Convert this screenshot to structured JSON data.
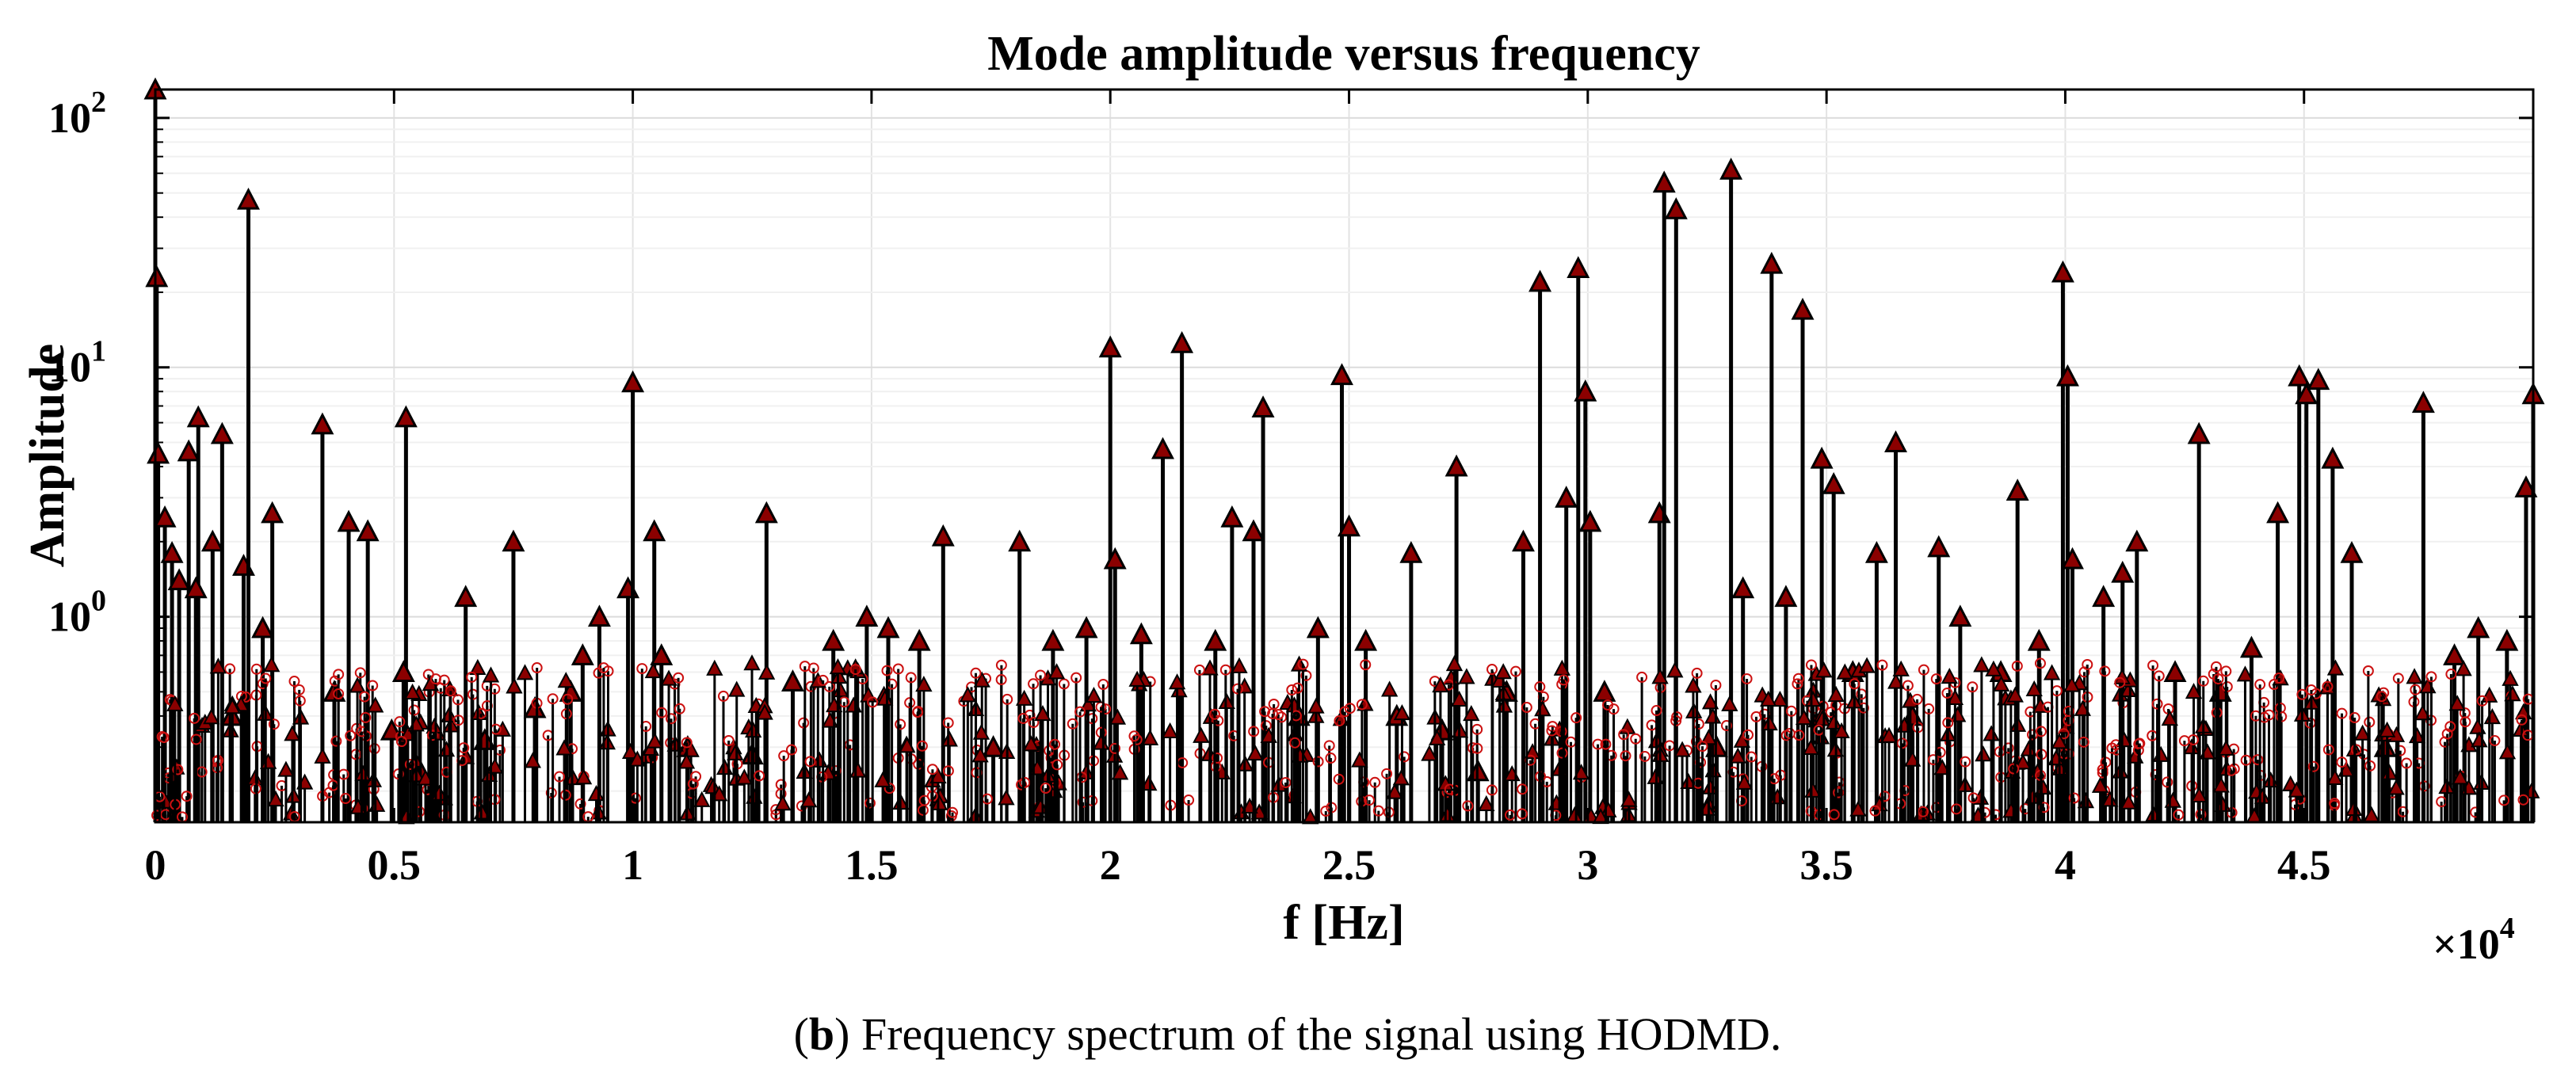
{
  "chart_data": {
    "type": "stem",
    "title": "Mode amplitude versus frequency",
    "xlabel": "f [Hz]",
    "ylabel": "Amplitude",
    "x_multiplier_label": "×10",
    "x_multiplier_exponent": "4",
    "xlim": [
      0,
      49800
    ],
    "ylim": [
      0.15,
      130
    ],
    "yscale": "log",
    "grid": true,
    "xticks": [
      {
        "value": 0,
        "label": "0"
      },
      {
        "value": 5000,
        "label": "0.5"
      },
      {
        "value": 10000,
        "label": "1"
      },
      {
        "value": 15000,
        "label": "1.5"
      },
      {
        "value": 20000,
        "label": "2"
      },
      {
        "value": 25000,
        "label": "2.5"
      },
      {
        "value": 30000,
        "label": "3"
      },
      {
        "value": 35000,
        "label": "3.5"
      },
      {
        "value": 40000,
        "label": "4"
      },
      {
        "value": 45000,
        "label": "4.5"
      }
    ],
    "yticks": [
      {
        "value": 1,
        "base": "10",
        "exp": "0"
      },
      {
        "value": 10,
        "base": "10",
        "exp": "1"
      },
      {
        "value": 100,
        "base": "10",
        "exp": "2"
      }
    ],
    "stem_color": "#000000",
    "marker_color": "#8b0000",
    "circle_color": "#cc1111",
    "peaks": [
      {
        "f": 0,
        "a": 130
      },
      {
        "f": 30,
        "a": 23
      },
      {
        "f": 60,
        "a": 4.5
      },
      {
        "f": 200,
        "a": 2.5
      },
      {
        "f": 350,
        "a": 1.8
      },
      {
        "f": 500,
        "a": 1.4
      },
      {
        "f": 700,
        "a": 4.6
      },
      {
        "f": 900,
        "a": 6.3
      },
      {
        "f": 850,
        "a": 1.3
      },
      {
        "f": 1200,
        "a": 2.0
      },
      {
        "f": 1400,
        "a": 5.4
      },
      {
        "f": 1600,
        "a": 0.4
      },
      {
        "f": 1850,
        "a": 1.6
      },
      {
        "f": 1950,
        "a": 47
      },
      {
        "f": 2250,
        "a": 0.9
      },
      {
        "f": 2450,
        "a": 2.6
      },
      {
        "f": 3500,
        "a": 5.9
      },
      {
        "f": 3750,
        "a": 0.5
      },
      {
        "f": 4050,
        "a": 2.4
      },
      {
        "f": 4450,
        "a": 2.2
      },
      {
        "f": 4950,
        "a": 0.35
      },
      {
        "f": 5250,
        "a": 6.3
      },
      {
        "f": 5200,
        "a": 0.6
      },
      {
        "f": 5550,
        "a": 0.24
      },
      {
        "f": 6500,
        "a": 1.2
      },
      {
        "f": 6900,
        "a": 0.32
      },
      {
        "f": 7500,
        "a": 2.0
      },
      {
        "f": 7950,
        "a": 0.43
      },
      {
        "f": 8700,
        "a": 0.5
      },
      {
        "f": 8950,
        "a": 0.7
      },
      {
        "f": 9300,
        "a": 1.0
      },
      {
        "f": 9900,
        "a": 1.3
      },
      {
        "f": 10000,
        "a": 8.7
      },
      {
        "f": 10450,
        "a": 2.2
      },
      {
        "f": 10600,
        "a": 0.7
      },
      {
        "f": 11150,
        "a": 0.3
      },
      {
        "f": 12500,
        "a": 0.28
      },
      {
        "f": 12800,
        "a": 2.6
      },
      {
        "f": 13350,
        "a": 0.55
      },
      {
        "f": 14200,
        "a": 0.8
      },
      {
        "f": 14900,
        "a": 1.0
      },
      {
        "f": 15350,
        "a": 0.9
      },
      {
        "f": 16000,
        "a": 0.8
      },
      {
        "f": 16500,
        "a": 2.1
      },
      {
        "f": 17550,
        "a": 0.3
      },
      {
        "f": 18100,
        "a": 2.0
      },
      {
        "f": 18800,
        "a": 0.8
      },
      {
        "f": 19500,
        "a": 0.9
      },
      {
        "f": 20000,
        "a": 12
      },
      {
        "f": 20100,
        "a": 1.7
      },
      {
        "f": 20650,
        "a": 0.85
      },
      {
        "f": 21100,
        "a": 4.7
      },
      {
        "f": 21500,
        "a": 12.5
      },
      {
        "f": 22200,
        "a": 0.8
      },
      {
        "f": 22550,
        "a": 2.5
      },
      {
        "f": 23000,
        "a": 2.2
      },
      {
        "f": 23200,
        "a": 6.9
      },
      {
        "f": 23950,
        "a": 0.4
      },
      {
        "f": 24350,
        "a": 0.9
      },
      {
        "f": 24850,
        "a": 9.3
      },
      {
        "f": 25000,
        "a": 2.3
      },
      {
        "f": 25350,
        "a": 0.8
      },
      {
        "f": 26000,
        "a": 0.4
      },
      {
        "f": 26300,
        "a": 1.8
      },
      {
        "f": 26950,
        "a": 0.35
      },
      {
        "f": 27250,
        "a": 4.0
      },
      {
        "f": 27700,
        "a": 0.24
      },
      {
        "f": 28300,
        "a": 0.5
      },
      {
        "f": 28650,
        "a": 2.0
      },
      {
        "f": 29000,
        "a": 22
      },
      {
        "f": 29550,
        "a": 3.0
      },
      {
        "f": 29800,
        "a": 25
      },
      {
        "f": 29950,
        "a": 8.0
      },
      {
        "f": 30050,
        "a": 2.4
      },
      {
        "f": 30350,
        "a": 0.5
      },
      {
        "f": 31500,
        "a": 2.6
      },
      {
        "f": 31600,
        "a": 55
      },
      {
        "f": 31850,
        "a": 43
      },
      {
        "f": 32700,
        "a": 0.3
      },
      {
        "f": 33000,
        "a": 62
      },
      {
        "f": 33250,
        "a": 1.3
      },
      {
        "f": 33850,
        "a": 26
      },
      {
        "f": 34150,
        "a": 1.2
      },
      {
        "f": 34500,
        "a": 17
      },
      {
        "f": 34900,
        "a": 4.3
      },
      {
        "f": 35150,
        "a": 3.4
      },
      {
        "f": 35550,
        "a": 0.6
      },
      {
        "f": 36050,
        "a": 1.8
      },
      {
        "f": 36450,
        "a": 5.0
      },
      {
        "f": 36800,
        "a": 0.4
      },
      {
        "f": 37350,
        "a": 1.9
      },
      {
        "f": 37800,
        "a": 1.0
      },
      {
        "f": 38650,
        "a": 0.6
      },
      {
        "f": 39000,
        "a": 3.2
      },
      {
        "f": 39450,
        "a": 0.8
      },
      {
        "f": 39950,
        "a": 24
      },
      {
        "f": 40050,
        "a": 9.2
      },
      {
        "f": 40150,
        "a": 1.7
      },
      {
        "f": 40800,
        "a": 1.2
      },
      {
        "f": 41200,
        "a": 1.5
      },
      {
        "f": 41500,
        "a": 2.0
      },
      {
        "f": 42300,
        "a": 0.6
      },
      {
        "f": 42800,
        "a": 5.4
      },
      {
        "f": 43250,
        "a": 0.5
      },
      {
        "f": 43900,
        "a": 0.75
      },
      {
        "f": 44450,
        "a": 2.6
      },
      {
        "f": 44900,
        "a": 9.2
      },
      {
        "f": 45050,
        "a": 7.8
      },
      {
        "f": 45300,
        "a": 8.9
      },
      {
        "f": 45600,
        "a": 4.3
      },
      {
        "f": 46000,
        "a": 1.8
      },
      {
        "f": 46700,
        "a": 0.3
      },
      {
        "f": 47500,
        "a": 7.2
      },
      {
        "f": 48150,
        "a": 0.7
      },
      {
        "f": 48650,
        "a": 0.9
      },
      {
        "f": 49250,
        "a": 0.8
      },
      {
        "f": 49650,
        "a": 3.3
      },
      {
        "f": 49800,
        "a": 7.8
      }
    ]
  },
  "caption": {
    "bold_part": "b",
    "text_before": "(",
    "text_after": ") Frequency spectrum of the signal using HODMD."
  }
}
